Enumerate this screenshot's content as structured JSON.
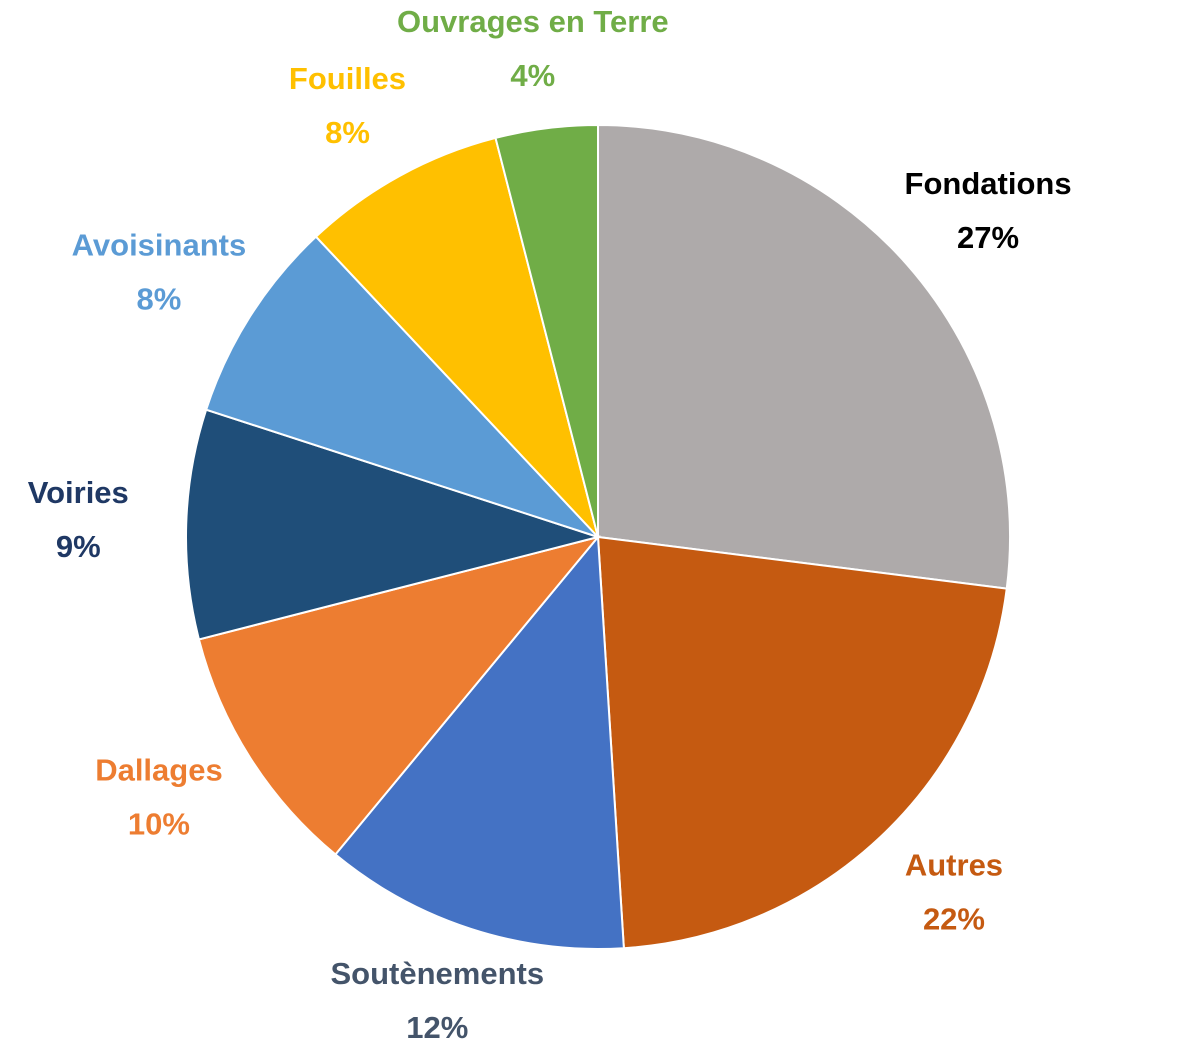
{
  "chart_data": {
    "type": "pie",
    "categories": [
      "Fondations",
      "Autres",
      "Soutènements",
      "Dallages",
      "Voiries",
      "Avoisinants",
      "Fouilles",
      "Ouvrages en Terre"
    ],
    "values": [
      27,
      22,
      12,
      10,
      9,
      8,
      8,
      4
    ],
    "value_labels": [
      "27%",
      "22%",
      "12%",
      "10%",
      "9%",
      "8%",
      "8%",
      "4%"
    ],
    "colors": [
      "#AEAAAA",
      "#C55A11",
      "#4472C4",
      "#ED7D31",
      "#1F4E79",
      "#5B9BD5",
      "#FFC000",
      "#70AD47"
    ],
    "label_colors": [
      "#000000",
      "#C55A11",
      "#44546A",
      "#ED7D31",
      "#1F3864",
      "#5B9BD5",
      "#FFC000",
      "#70AD47"
    ]
  }
}
